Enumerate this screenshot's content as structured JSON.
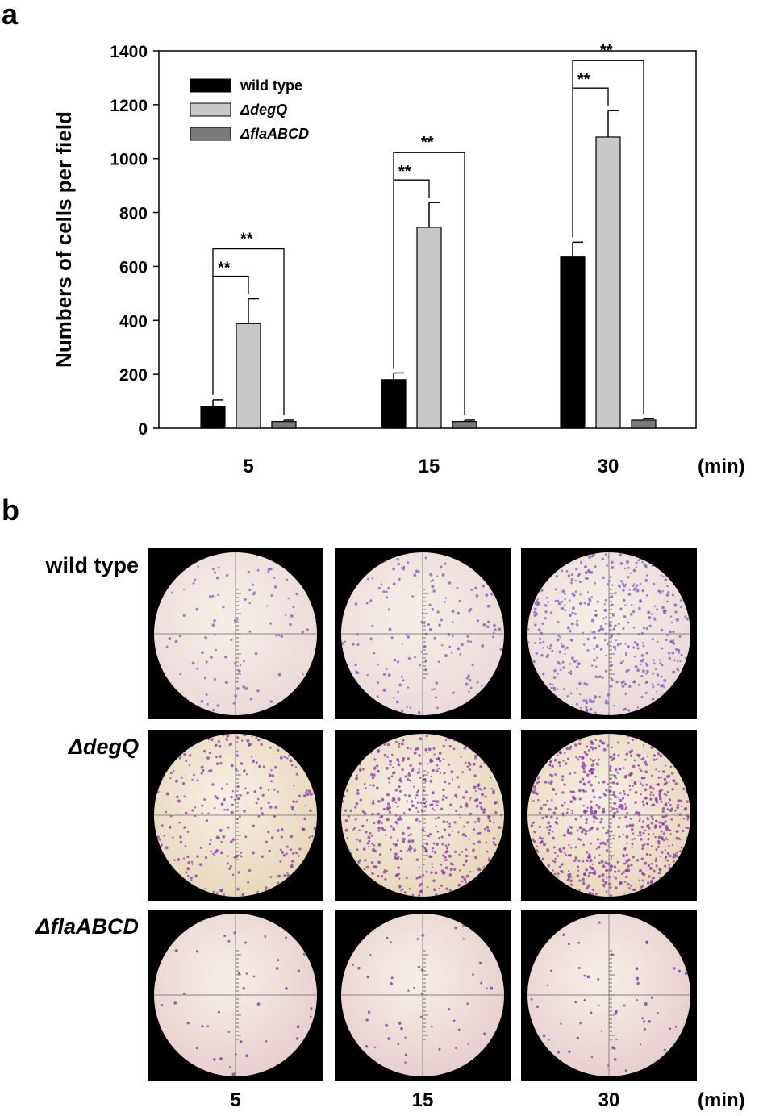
{
  "panel_a_label": "a",
  "panel_b_label": "b",
  "chart_data": {
    "type": "bar",
    "title": "",
    "xlabel": "",
    "x_unit": "(min)",
    "ylabel": "Numbers of cells per field",
    "ylim": [
      0,
      1400
    ],
    "yticks": [
      0,
      200,
      400,
      600,
      800,
      1000,
      1200,
      1400
    ],
    "categories": [
      "5",
      "15",
      "30"
    ],
    "legend_position": "top-left",
    "grid": false,
    "series": [
      {
        "name": "wild type",
        "color": "#000000",
        "values": [
          80,
          180,
          635
        ],
        "errors": [
          25,
          25,
          55
        ]
      },
      {
        "name": "ΔdegQ",
        "color": "#c8c8c8",
        "values": [
          388,
          745,
          1080
        ],
        "errors": [
          92,
          92,
          98
        ]
      },
      {
        "name": "ΔflaABCD",
        "color": "#7a7a7a",
        "values": [
          25,
          25,
          30
        ],
        "errors": [
          5,
          5,
          5
        ]
      }
    ],
    "significance": [
      {
        "category": "5",
        "pairs": [
          {
            "from": "wild type",
            "to": "ΔdegQ",
            "label": "**"
          },
          {
            "from": "wild type",
            "to": "ΔflaABCD",
            "label": "**"
          }
        ]
      },
      {
        "category": "15",
        "pairs": [
          {
            "from": "wild type",
            "to": "ΔdegQ",
            "label": "**"
          },
          {
            "from": "wild type",
            "to": "ΔflaABCD",
            "label": "**"
          }
        ]
      },
      {
        "category": "30",
        "pairs": [
          {
            "from": "wild type",
            "to": "ΔdegQ",
            "label": "**"
          },
          {
            "from": "wild type",
            "to": "ΔflaABCD",
            "label": "**"
          }
        ]
      }
    ]
  },
  "micrographs": {
    "rows": [
      {
        "label": "wild type",
        "italic": false,
        "density": [
          90,
          150,
          420
        ],
        "dot_color": "#7a5cc0",
        "bg": "#ead8d8"
      },
      {
        "label": "ΔdegQ",
        "italic": true,
        "density": [
          260,
          480,
          700
        ],
        "dot_color": "#8a3aa8",
        "bg": "#e6d6b8"
      },
      {
        "label": "ΔflaABCD",
        "italic": true,
        "density": [
          40,
          45,
          55
        ],
        "dot_color": "#6a3fa0",
        "bg": "#e6cdcd"
      }
    ],
    "columns": [
      "5",
      "15",
      "30"
    ],
    "x_unit": "(min)"
  }
}
